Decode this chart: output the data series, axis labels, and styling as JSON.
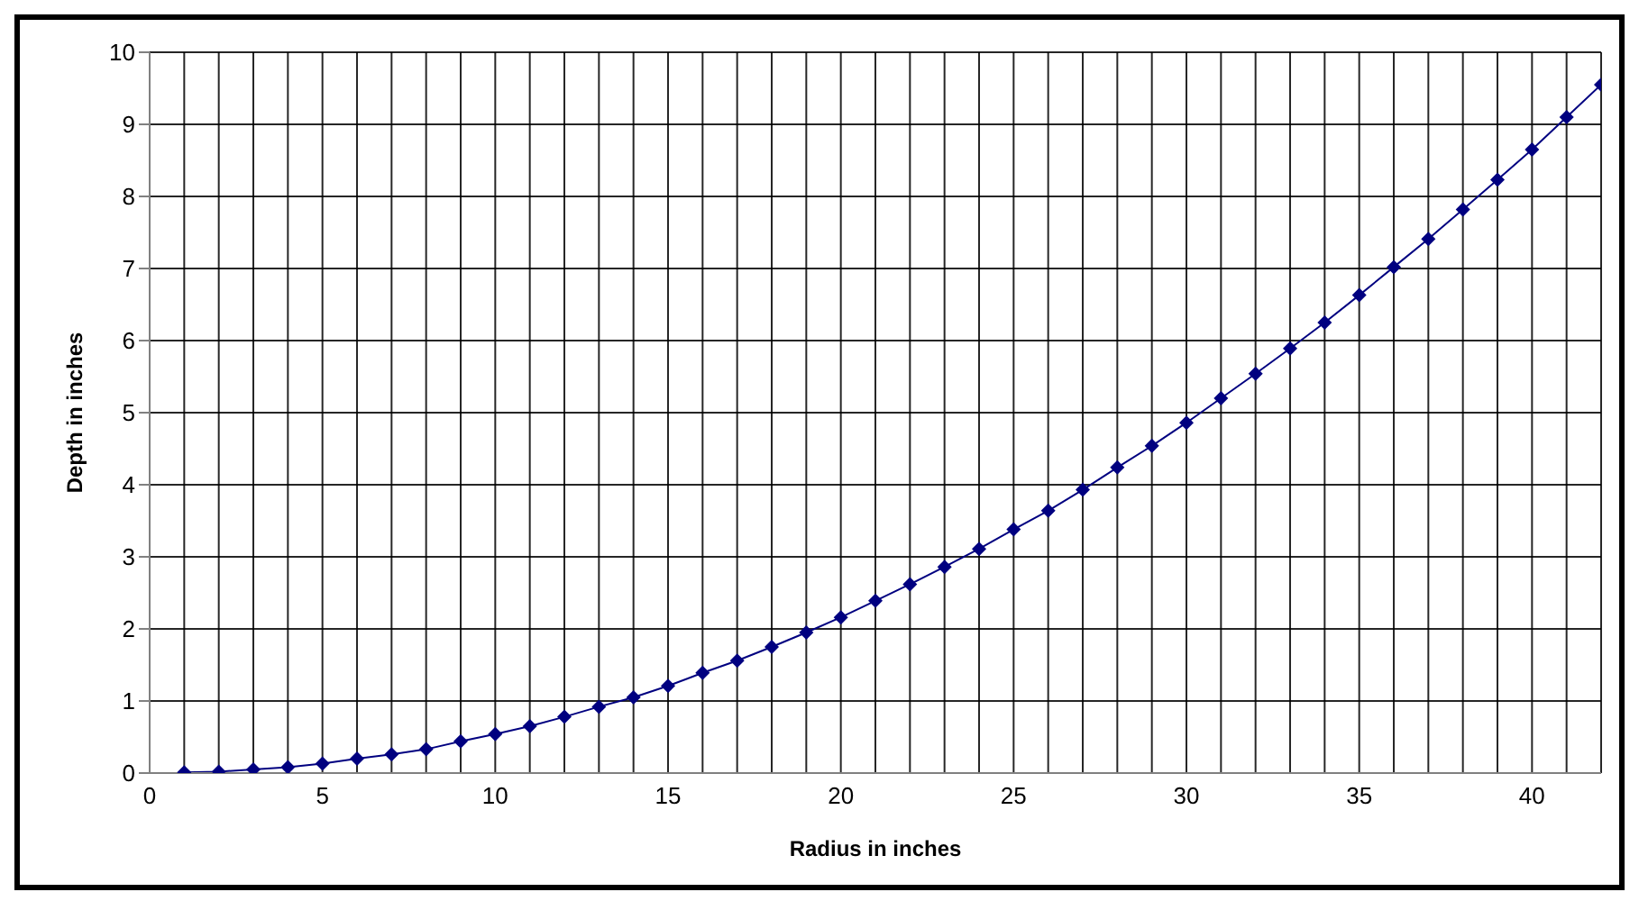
{
  "chart_data": {
    "type": "line",
    "xlabel": "Radius in inches",
    "ylabel": "Depth in inches",
    "x": [
      1,
      2,
      3,
      4,
      5,
      6,
      7,
      8,
      9,
      10,
      11,
      12,
      13,
      14,
      15,
      16,
      17,
      18,
      19,
      20,
      21,
      22,
      23,
      24,
      25,
      26,
      27,
      28,
      29,
      30,
      31,
      32,
      33,
      34,
      35,
      36,
      37,
      38,
      39,
      40,
      41,
      42
    ],
    "series": [
      {
        "color": "#000080",
        "values": [
          0.01,
          0.02,
          0.05,
          0.08,
          0.13,
          0.2,
          0.26,
          0.33,
          0.44,
          0.54,
          0.65,
          0.78,
          0.92,
          1.05,
          1.21,
          1.39,
          1.56,
          1.75,
          1.95,
          2.16,
          2.39,
          2.62,
          2.86,
          3.11,
          3.38,
          3.64,
          3.93,
          4.24,
          4.54,
          4.86,
          5.2,
          5.54,
          5.89,
          6.25,
          6.63,
          7.02,
          7.41,
          7.82,
          8.23,
          8.65,
          9.1,
          9.55
        ]
      }
    ],
    "xlim": [
      0,
      42
    ],
    "xticks": [
      0,
      {
        "value": 1,
        "label": null
      },
      {
        "value": 2,
        "label": null
      },
      {
        "value": 3,
        "label": null
      },
      {
        "value": 4,
        "label": null
      },
      5,
      {
        "value": 6,
        "label": null
      },
      {
        "value": 7,
        "label": null
      },
      {
        "value": 8,
        "label": null
      },
      {
        "value": 9,
        "label": null
      },
      10,
      {
        "value": 11,
        "label": null
      },
      {
        "value": 12,
        "label": null
      },
      {
        "value": 13,
        "label": null
      },
      {
        "value": 14,
        "label": null
      },
      15,
      {
        "value": 16,
        "label": null
      },
      {
        "value": 17,
        "label": null
      },
      {
        "value": 18,
        "label": null
      },
      {
        "value": 19,
        "label": null
      },
      20,
      {
        "value": 21,
        "label": null
      },
      {
        "value": 22,
        "label": null
      },
      {
        "value": 23,
        "label": null
      },
      {
        "value": 24,
        "label": null
      },
      25,
      {
        "value": 26,
        "label": null
      },
      {
        "value": 27,
        "label": null
      },
      {
        "value": 28,
        "label": null
      },
      {
        "value": 29,
        "label": null
      },
      30,
      {
        "value": 31,
        "label": null
      },
      {
        "value": 32,
        "label": null
      },
      {
        "value": 33,
        "label": null
      },
      {
        "value": 34,
        "label": null
      },
      35,
      {
        "value": 36,
        "label": null
      },
      {
        "value": 37,
        "label": null
      },
      {
        "value": 38,
        "label": null
      },
      {
        "value": 39,
        "label": null
      },
      40,
      {
        "value": 41,
        "label": null
      },
      {
        "value": 42,
        "label": null
      }
    ],
    "ylim": [
      0,
      10
    ],
    "yticks": [
      0,
      1,
      2,
      3,
      4,
      5,
      6,
      7,
      8,
      9,
      10
    ],
    "grid": true,
    "legend": false,
    "marker": "diamond",
    "line_style": "solid"
  }
}
